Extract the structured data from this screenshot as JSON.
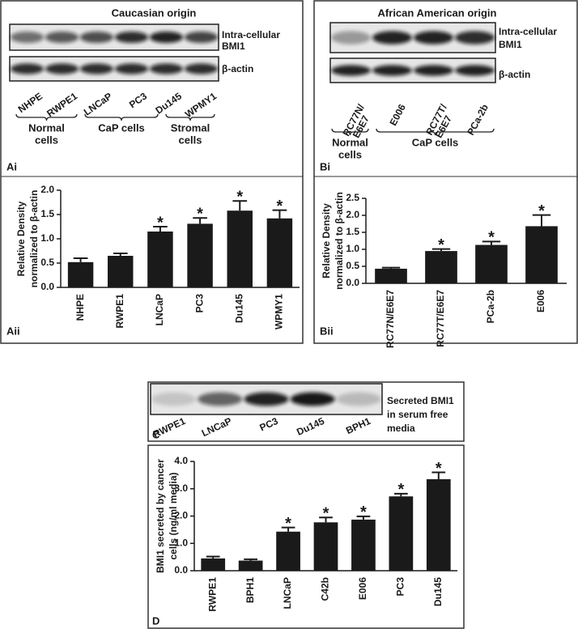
{
  "blots": [
    {
      "panel": "Ai",
      "title": "Caucasian origin",
      "bands": [
        [
          "Intra-cellular",
          "BMI1"
        ],
        [
          "β-actin"
        ]
      ],
      "lanes": [
        [
          "NHPE"
        ],
        [
          "RWPE1"
        ],
        [
          "LNCaP"
        ],
        [
          "PC3"
        ],
        [
          "Du145"
        ],
        [
          "WPMY1"
        ]
      ],
      "groups": [
        [
          "Normal",
          "cells"
        ],
        [
          "CaP cells"
        ],
        [
          "Stromal",
          "cells"
        ]
      ]
    },
    {
      "panel": "Bi",
      "title": "African American origin",
      "bands": [
        [
          "Intra-cellular",
          "BMI1"
        ],
        [
          "β-actin"
        ]
      ],
      "lanes": [
        [
          "RC77N/",
          "E6E7"
        ],
        [
          "E006"
        ],
        [
          "RC77T/",
          "E6E7"
        ],
        [
          "PCa-2b"
        ]
      ],
      "groups": [
        [
          "Normal",
          "cells"
        ],
        [
          "CaP cells"
        ]
      ]
    },
    {
      "panel": "C",
      "bands": [
        [
          "Secreted BMI1",
          "in serum free",
          "media"
        ]
      ],
      "lanes": [
        [
          "RWPE1"
        ],
        [
          "LNCaP"
        ],
        [
          "PC3"
        ],
        [
          "Du145"
        ],
        [
          "BPH1"
        ]
      ],
      "groups": []
    }
  ],
  "chart_data": [
    {
      "type": "bar",
      "panel": "Aii",
      "ylabel": [
        "Relative Density",
        "normalized to β-actin"
      ],
      "categories": [
        "NHPE",
        "RWPE1",
        "LNCaP",
        "PC3",
        "Du145",
        "WPMY1"
      ],
      "values": [
        0.52,
        0.65,
        1.15,
        1.31,
        1.58,
        1.42
      ],
      "errors": [
        0.08,
        0.05,
        0.1,
        0.12,
        0.2,
        0.17
      ],
      "significance": [
        null,
        null,
        "*",
        "*",
        "*",
        "*"
      ],
      "color": "#1a1a1a",
      "ylim": [
        0,
        2
      ],
      "yticks": [
        {
          "value": 0,
          "label": "0.0"
        },
        {
          "value": 0.5,
          "label": "0.5"
        },
        {
          "value": 1,
          "label": "1.0"
        },
        {
          "value": 1.5,
          "label": "1.5"
        },
        {
          "value": 2,
          "label": "2.0"
        }
      ]
    },
    {
      "type": "bar",
      "panel": "Bii",
      "ylabel": [
        "Relative Density",
        "normalized to β-actin"
      ],
      "categories": [
        "RC77N/E6E7",
        "RC77T/E6E7",
        "PCa-2b",
        "E006"
      ],
      "values": [
        0.43,
        0.95,
        1.13,
        1.68
      ],
      "errors": [
        0.03,
        0.06,
        0.1,
        0.33
      ],
      "significance": [
        null,
        "*",
        "*",
        "*"
      ],
      "color": "#1a1a1a",
      "ylim": [
        0,
        2.5
      ],
      "yticks": [
        {
          "value": 0,
          "label": "0.0"
        },
        {
          "value": 0.5,
          "label": "0.5"
        },
        {
          "value": 1,
          "label": "1.0"
        },
        {
          "value": 1.5,
          "label": "1.5"
        },
        {
          "value": 2,
          "label": "2.0"
        },
        {
          "value": 2.5,
          "label": "2.5"
        }
      ]
    },
    {
      "type": "bar",
      "panel": "D",
      "ylabel": [
        "BMI1 secreted by cancer",
        "cells (ng/ml media)"
      ],
      "categories": [
        "RWPE1",
        "BPH1",
        "LNCaP",
        "C42b",
        "E006",
        "PC3",
        "Du145"
      ],
      "values": [
        0.45,
        0.37,
        1.43,
        1.77,
        1.87,
        2.72,
        3.35
      ],
      "errors": [
        0.07,
        0.05,
        0.15,
        0.18,
        0.12,
        0.1,
        0.25
      ],
      "significance": [
        null,
        null,
        "*",
        "*",
        "*",
        "*",
        "*"
      ],
      "color": "#1a1a1a",
      "ylim": [
        0,
        4
      ],
      "yticks": [
        {
          "value": 0,
          "label": "0.0"
        },
        {
          "value": 1,
          "label": "1.0"
        },
        {
          "value": 2,
          "label": "2.0"
        },
        {
          "value": 3,
          "label": "3.0"
        },
        {
          "value": 4,
          "label": "4.0"
        }
      ]
    }
  ]
}
